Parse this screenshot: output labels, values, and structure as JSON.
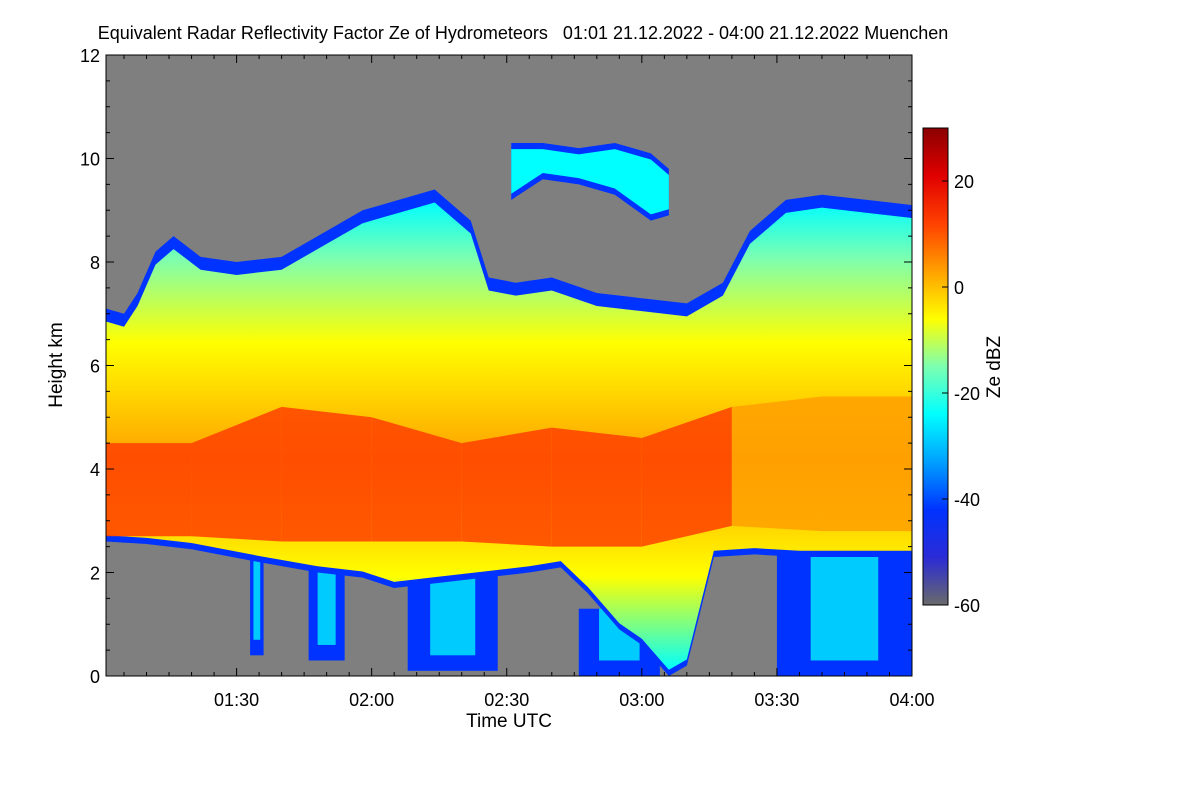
{
  "chart_data": {
    "type": "heatmap",
    "title": "Equivalent Radar Reflectivity Factor Ze of Hydrometeors   01:01 21.12.2022 - 04:00 21.12.2022 Muenchen",
    "xlabel": "Time UTC",
    "ylabel": "Height km",
    "x_range_minutes": [
      61,
      240
    ],
    "x_ticks": [
      {
        "minutes": 90,
        "label": "01:30"
      },
      {
        "minutes": 120,
        "label": "02:00"
      },
      {
        "minutes": 150,
        "label": "02:30"
      },
      {
        "minutes": 180,
        "label": "03:00"
      },
      {
        "minutes": 210,
        "label": "03:30"
      },
      {
        "minutes": 240,
        "label": "04:00"
      }
    ],
    "ylim": [
      0,
      12
    ],
    "y_ticks": [
      0,
      2,
      4,
      6,
      8,
      10,
      12
    ],
    "background_color": "#7f7f7f",
    "colorbar": {
      "label": "Ze dBZ",
      "range": [
        -60,
        30
      ],
      "ticks": [
        -60,
        -40,
        -20,
        0,
        20
      ],
      "colors": [
        "#6a6a6a",
        "#2b2bd6",
        "#0033ff",
        "#00a0ff",
        "#00ffff",
        "#7dffb0",
        "#ffff00",
        "#ffa000",
        "#ff4000",
        "#e00000",
        "#8b0000"
      ]
    },
    "cloud_top_km": [
      {
        "t": 61,
        "top": 7.1
      },
      {
        "t": 65,
        "top": 7.0
      },
      {
        "t": 68,
        "top": 7.4
      },
      {
        "t": 72,
        "top": 8.2
      },
      {
        "t": 76,
        "top": 8.5
      },
      {
        "t": 82,
        "top": 8.1
      },
      {
        "t": 90,
        "top": 8.0
      },
      {
        "t": 100,
        "top": 8.1
      },
      {
        "t": 110,
        "top": 8.6
      },
      {
        "t": 118,
        "top": 9.0
      },
      {
        "t": 126,
        "top": 9.2
      },
      {
        "t": 134,
        "top": 9.4
      },
      {
        "t": 142,
        "top": 8.8
      },
      {
        "t": 146,
        "top": 7.7
      },
      {
        "t": 152,
        "top": 7.6
      },
      {
        "t": 160,
        "top": 7.7
      },
      {
        "t": 170,
        "top": 7.4
      },
      {
        "t": 180,
        "top": 7.3
      },
      {
        "t": 190,
        "top": 7.2
      },
      {
        "t": 198,
        "top": 7.6
      },
      {
        "t": 204,
        "top": 8.6
      },
      {
        "t": 212,
        "top": 9.2
      },
      {
        "t": 220,
        "top": 9.3
      },
      {
        "t": 230,
        "top": 9.2
      },
      {
        "t": 240,
        "top": 9.1
      }
    ],
    "cloud_base_km": [
      {
        "t": 61,
        "base": 2.6
      },
      {
        "t": 70,
        "base": 2.55
      },
      {
        "t": 80,
        "base": 2.45
      },
      {
        "t": 95,
        "base": 2.2
      },
      {
        "t": 108,
        "base": 2.0
      },
      {
        "t": 118,
        "base": 1.9
      },
      {
        "t": 125,
        "base": 1.7
      },
      {
        "t": 135,
        "base": 1.8
      },
      {
        "t": 145,
        "base": 1.9
      },
      {
        "t": 155,
        "base": 2.0
      },
      {
        "t": 162,
        "base": 2.1
      },
      {
        "t": 168,
        "base": 1.6
      },
      {
        "t": 175,
        "base": 0.9
      },
      {
        "t": 180,
        "base": 0.6
      },
      {
        "t": 186,
        "base": 0.0
      },
      {
        "t": 190,
        "base": 0.2
      },
      {
        "t": 196,
        "base": 2.3
      },
      {
        "t": 205,
        "base": 2.35
      },
      {
        "t": 215,
        "base": 2.3
      },
      {
        "t": 225,
        "base": 2.3
      },
      {
        "t": 240,
        "base": 2.3
      }
    ],
    "upper_cloud_km": [
      {
        "t": 151,
        "bottom": 9.2,
        "top": 10.3
      },
      {
        "t": 158,
        "bottom": 9.6,
        "top": 10.3
      },
      {
        "t": 166,
        "bottom": 9.5,
        "top": 10.2
      },
      {
        "t": 174,
        "bottom": 9.3,
        "top": 10.3
      },
      {
        "t": 182,
        "bottom": 8.8,
        "top": 10.1
      },
      {
        "t": 186,
        "bottom": 8.9,
        "top": 9.8
      }
    ],
    "fallstreaks": [
      {
        "t_start": 93,
        "t_end": 96,
        "bottom_km": 0.4
      },
      {
        "t_start": 106,
        "t_end": 114,
        "bottom_km": 0.3
      },
      {
        "t_start": 128,
        "t_end": 148,
        "bottom_km": 0.1
      },
      {
        "t_start": 166,
        "t_end": 184,
        "bottom_km": 0.0
      },
      {
        "t_start": 210,
        "t_end": 240,
        "bottom_km": 0.0
      }
    ],
    "core_layers": [
      {
        "t": 61,
        "low": 2.7,
        "high": 4.5,
        "dbz": 8
      },
      {
        "t": 80,
        "low": 2.7,
        "high": 4.5,
        "dbz": 11
      },
      {
        "t": 100,
        "low": 2.6,
        "high": 5.2,
        "dbz": 9
      },
      {
        "t": 120,
        "low": 2.6,
        "high": 5.0,
        "dbz": 12
      },
      {
        "t": 140,
        "low": 2.6,
        "high": 4.5,
        "dbz": 10
      },
      {
        "t": 160,
        "low": 2.5,
        "high": 4.8,
        "dbz": 14
      },
      {
        "t": 180,
        "low": 2.5,
        "high": 4.6,
        "dbz": 13
      },
      {
        "t": 200,
        "low": 2.9,
        "high": 5.2,
        "dbz": 5
      },
      {
        "t": 220,
        "low": 2.8,
        "high": 5.4,
        "dbz": 8
      },
      {
        "t": 240,
        "low": 2.8,
        "high": 5.4,
        "dbz": 6
      }
    ]
  }
}
